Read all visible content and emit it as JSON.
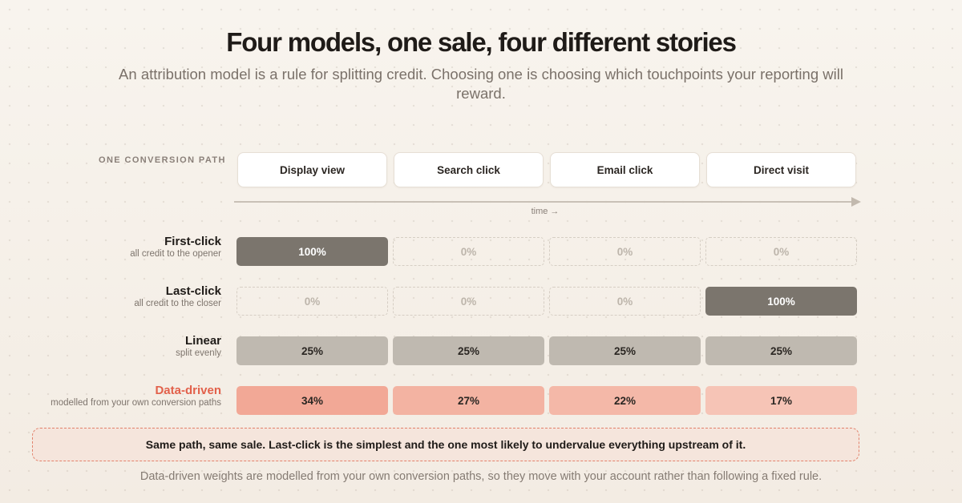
{
  "title": "Four models, one sale, four different stories",
  "subtitle": "An attribution model is a rule for splitting credit. Choosing one is choosing which touchpoints your reporting will reward.",
  "path_label": "ONE CONVERSION PATH",
  "touchpoints": [
    "Display view",
    "Search click",
    "Email click",
    "Direct visit"
  ],
  "time_label": "time →",
  "models": [
    {
      "name": "First-click",
      "desc": "all credit to the opener",
      "values": [
        "100%",
        "0%",
        "0%",
        "0%"
      ]
    },
    {
      "name": "Last-click",
      "desc": "all credit to the closer",
      "values": [
        "0%",
        "0%",
        "0%",
        "100%"
      ]
    },
    {
      "name": "Linear",
      "desc": "split evenly",
      "values": [
        "25%",
        "25%",
        "25%",
        "25%"
      ]
    },
    {
      "name": "Data-driven",
      "desc": "modelled from your own conversion paths",
      "values": [
        "34%",
        "27%",
        "22%",
        "17%"
      ]
    }
  ],
  "callout": "Same path, same sale. Last-click is the simplest and the one most likely to undervalue everything upstream of it.",
  "footnote": "Data-driven weights are modelled from your own conversion paths, so they move with your account rather than following a fixed rule.",
  "colors": {
    "accent": "#e2604a",
    "full_credit": "#7b756d",
    "even_credit": "#bfb9b0",
    "data_driven": [
      "#f2a896",
      "#f3b3a2",
      "#f4b8a8",
      "#f6c4b6"
    ]
  }
}
